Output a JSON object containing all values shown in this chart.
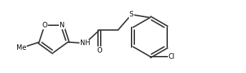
{
  "bg": "#ffffff",
  "lc": "#3a3a3a",
  "lw": 1.4,
  "fs": 7.0,
  "figsize": [
    3.59,
    1.07
  ],
  "dpi": 100,
  "xlim": [
    0.0,
    3.59
  ],
  "ylim": [
    0.0,
    1.07
  ]
}
